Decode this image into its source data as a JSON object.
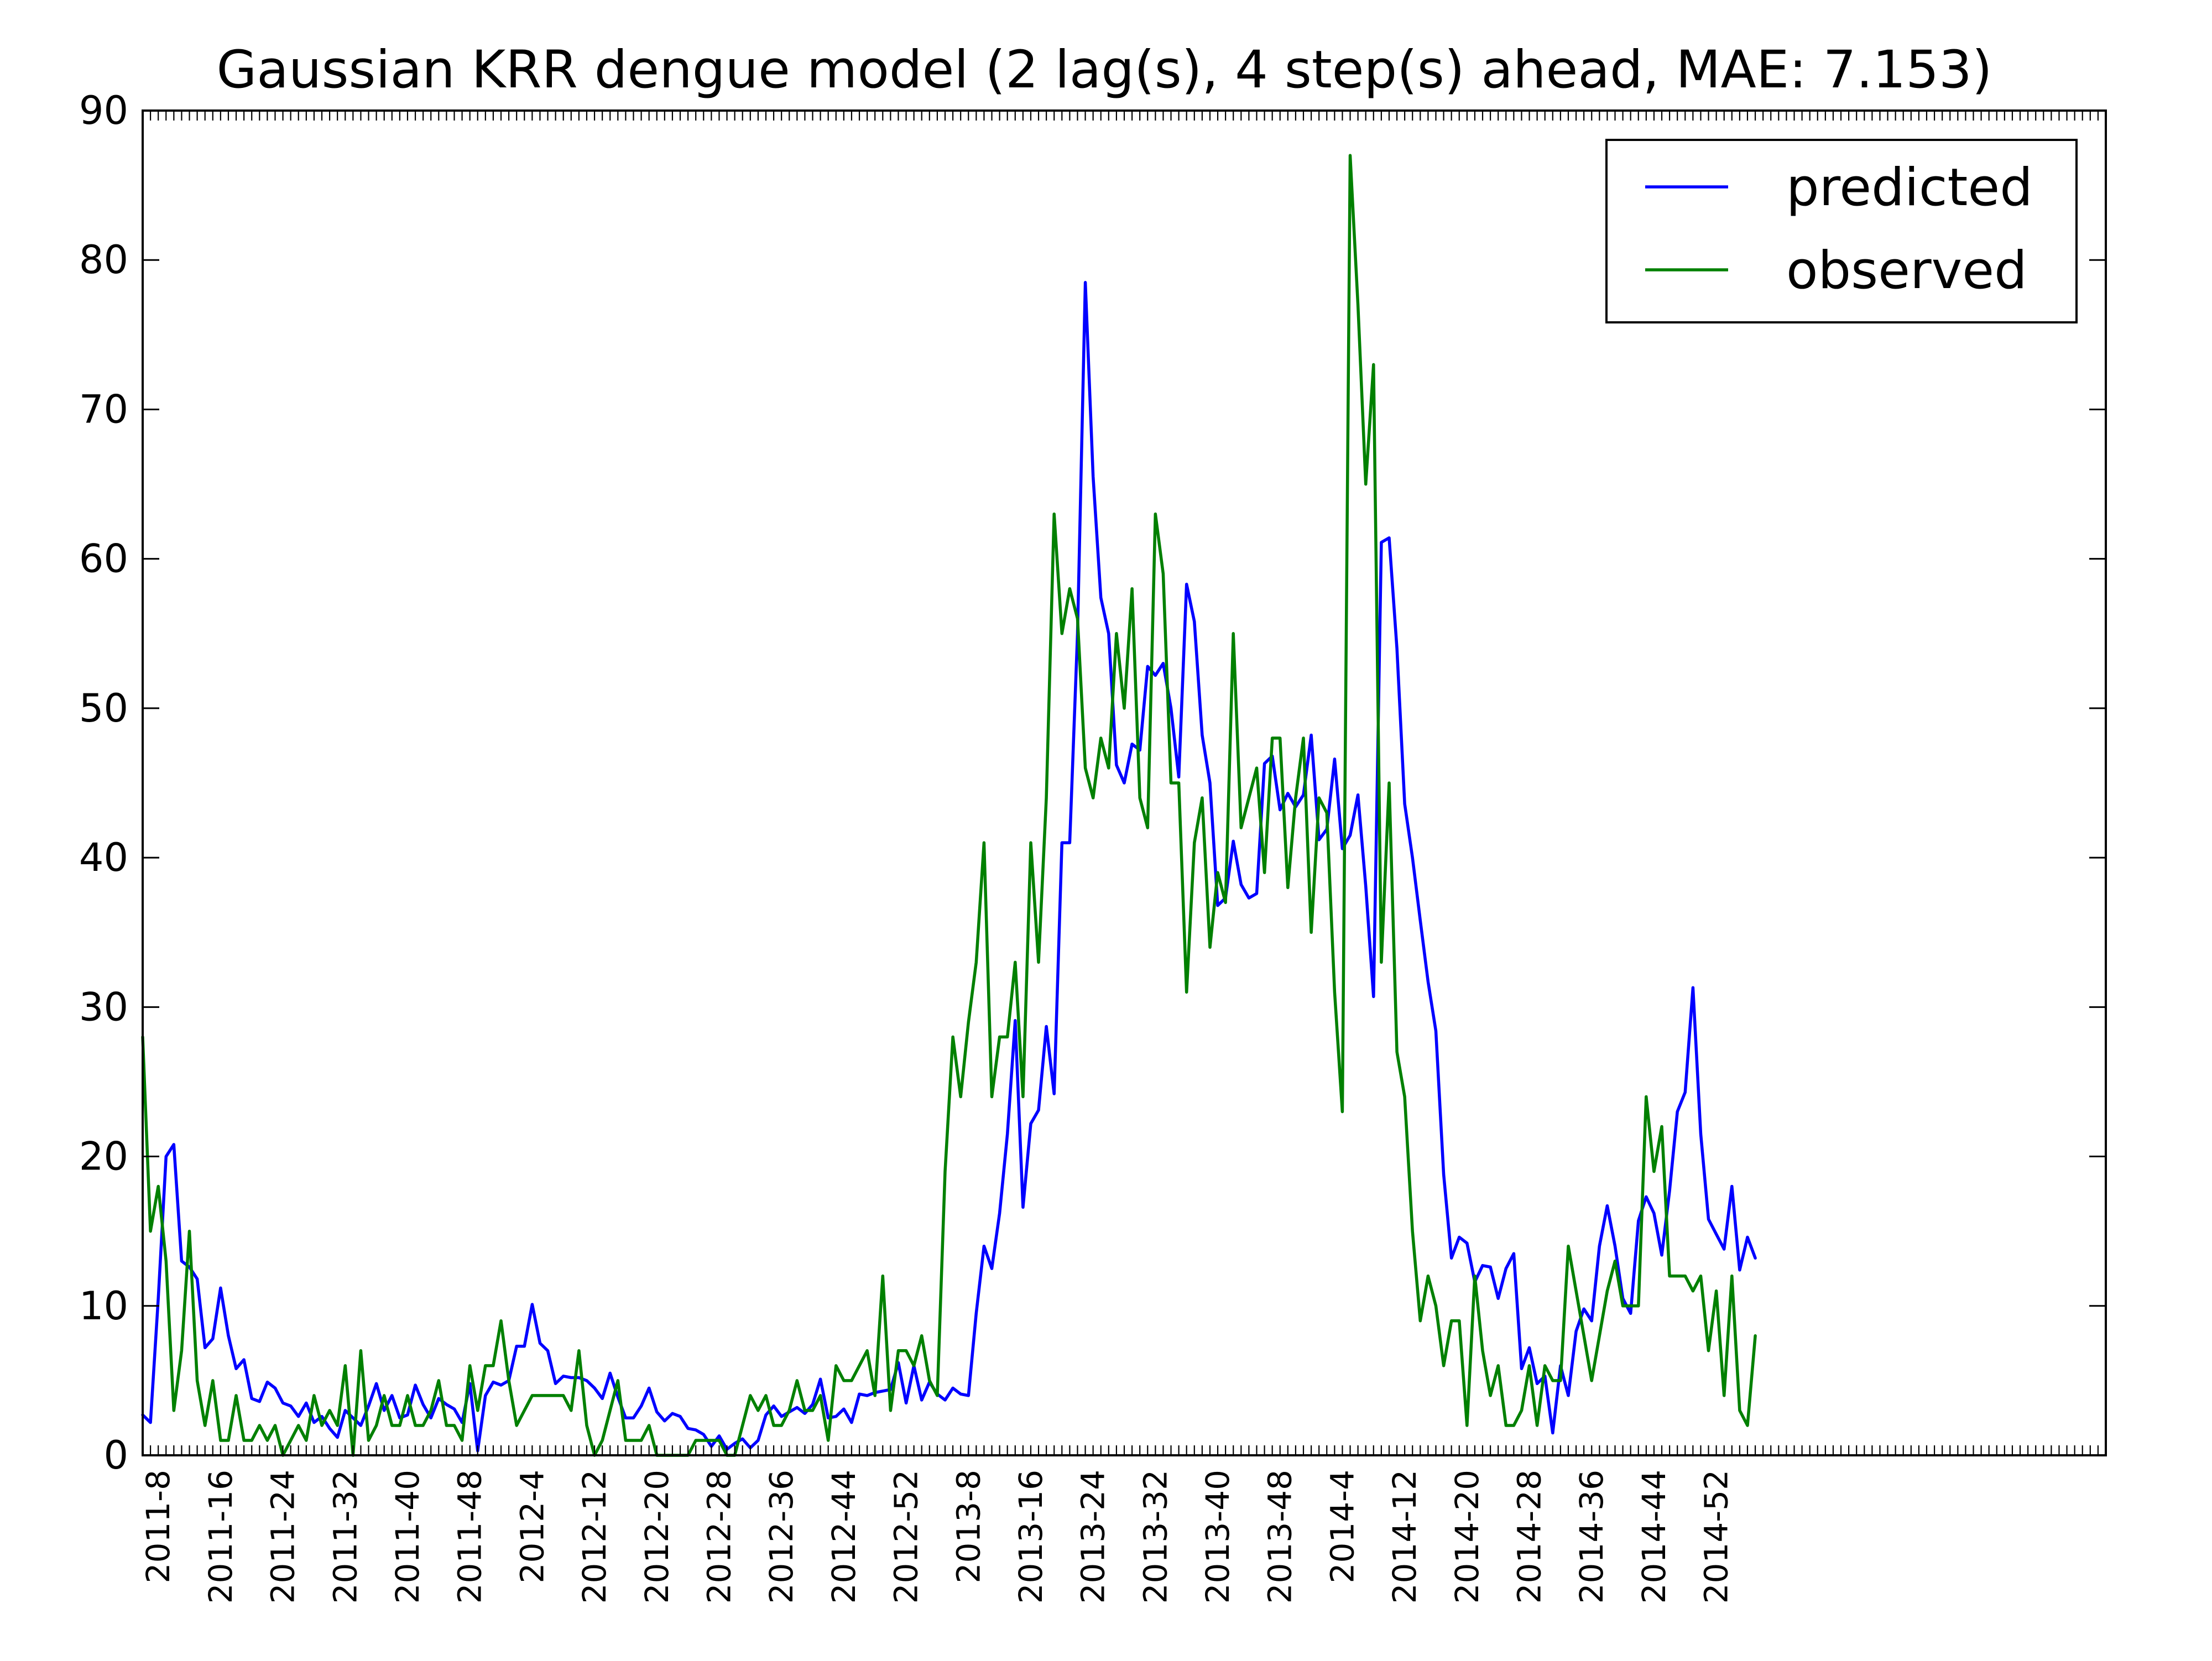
{
  "chart_data": {
    "type": "line",
    "title": "Gaussian KRR dengue model (2 lag(s), 4 step(s) ahead, MAE: 7.153)",
    "xlabel": "",
    "ylabel": "",
    "ylim": [
      0,
      90
    ],
    "yticks": [
      0,
      10,
      20,
      30,
      40,
      50,
      60,
      70,
      80,
      90
    ],
    "ytick_labels": [
      "0",
      "10",
      "20",
      "30",
      "40",
      "50",
      "60",
      "70",
      "80",
      "90"
    ],
    "x_week_range": [
      0,
      252
    ],
    "x_display_max": 252,
    "xtick_labels": [
      "2011-8",
      "2011-16",
      "2011-24",
      "2011-32",
      "2011-40",
      "2011-48",
      "2012-4",
      "2012-12",
      "2012-20",
      "2012-28",
      "2012-36",
      "2012-44",
      "2012-52",
      "2013-8",
      "2013-16",
      "2013-24",
      "2013-32",
      "2013-40",
      "2013-48",
      "2014-4",
      "2014-12",
      "2014-20",
      "2014-28",
      "2014-36",
      "2014-44",
      "2014-52"
    ],
    "xtick_positions": [
      2,
      10,
      18,
      26,
      34,
      42,
      50,
      58,
      66,
      74,
      82,
      90,
      98,
      106,
      114,
      122,
      130,
      138,
      146,
      154,
      162,
      170,
      178,
      186,
      194,
      202
    ],
    "grid": false,
    "legend_position": "top-right",
    "series": [
      {
        "name": "predicted",
        "color": "#0000ff",
        "values": [
          2.7,
          2.2,
          10.5,
          20,
          20.8,
          13,
          12.6,
          11.8,
          7.2,
          7.8,
          11.2,
          8,
          5.8,
          6.4,
          3.8,
          3.6,
          4.9,
          4.5,
          3.5,
          3.3,
          2.6,
          3.5,
          2.2,
          2.6,
          1.8,
          1.2,
          3,
          2.5,
          2,
          3.3,
          4.8,
          3,
          4,
          2.5,
          2.7,
          4.7,
          3.4,
          2.5,
          3.8,
          3.4,
          3.1,
          2.2,
          4.8,
          0.3,
          4,
          4.9,
          4.7,
          5,
          7.3,
          7.3,
          10.1,
          7.5,
          7,
          4.8,
          5.3,
          5.2,
          5.2,
          5,
          4.5,
          3.8,
          5.5,
          3.9,
          2.5,
          2.5,
          3.3,
          4.5,
          2.9,
          2.3,
          2.8,
          2.6,
          1.8,
          1.7,
          1.4,
          0.6,
          1.3,
          0.4,
          0.8,
          1.1,
          0.5,
          1,
          2.7,
          3.3,
          2.6,
          2.9,
          3.2,
          2.8,
          3.4,
          5.1,
          2.5,
          2.6,
          3.1,
          2.2,
          4.1,
          4,
          4.2,
          4.3,
          4.4,
          6.2,
          3.5,
          6,
          3.7,
          4.9,
          4.1,
          3.7,
          4.5,
          4.1,
          4,
          9.5,
          14,
          12.5,
          16.2,
          21.5,
          29.1,
          16.6,
          22.2,
          23.1,
          28.7,
          24.2,
          41,
          41,
          55,
          78.5,
          65.5,
          57.4,
          55,
          46.2,
          45,
          47.6,
          47.2,
          52.8,
          52.2,
          53,
          50,
          45.4,
          58.3,
          55.8,
          48.2,
          45,
          36.8,
          37.3,
          41.1,
          38.2,
          37.3,
          37.6,
          46.3,
          46.8,
          43.2,
          44.3,
          43.4,
          44.2,
          48.2,
          41.2,
          41.9,
          46.6,
          40.6,
          41.5,
          44.2,
          38.1,
          30.7,
          61.1,
          61.4,
          54,
          43.6,
          40,
          35.8,
          31.7,
          28.4,
          18.8,
          13.2,
          14.6,
          14.2,
          11.6,
          12.7,
          12.6,
          10.5,
          12.5,
          13.5,
          5.8,
          7.2,
          4.8,
          5.3,
          1.5,
          6,
          4,
          8.3,
          9.8,
          9,
          14,
          16.7,
          14,
          10.5,
          9.5,
          15.7,
          17.3,
          16.2,
          13.4,
          17.7,
          23,
          24.3,
          31.3,
          21.5,
          15.8,
          14.8,
          13.8,
          18,
          12.4,
          14.6,
          13.2
        ]
      },
      {
        "name": "observed",
        "color": "#008000",
        "values": [
          28,
          15,
          18,
          13,
          3,
          7,
          15,
          5,
          2,
          5,
          1,
          1,
          4,
          1,
          1,
          2,
          1,
          2,
          0,
          1,
          2,
          1,
          4,
          2,
          3,
          2,
          6,
          0,
          7,
          1,
          2,
          4,
          2,
          2,
          4,
          2,
          2,
          3,
          5,
          2,
          2,
          1,
          6,
          3,
          6,
          6,
          9,
          5,
          2,
          3,
          4,
          4,
          4,
          4,
          4,
          3,
          7,
          2,
          0,
          1,
          3,
          5,
          1,
          1,
          1,
          2,
          0,
          0,
          0,
          0,
          0,
          1,
          1,
          1,
          1,
          0,
          0,
          2,
          4,
          3,
          4,
          2,
          2,
          3,
          5,
          3,
          3,
          4,
          1,
          6,
          5,
          5,
          6,
          7,
          4,
          12,
          3,
          7,
          7,
          6,
          8,
          5,
          4,
          19,
          28,
          24,
          29,
          33,
          41,
          24,
          28,
          28,
          33,
          24,
          41,
          33,
          44,
          63,
          55,
          58,
          56,
          46,
          44,
          48,
          46,
          55,
          50,
          58,
          44,
          42,
          63,
          59,
          45,
          45,
          31,
          41,
          44,
          34,
          39,
          37,
          55,
          42,
          44,
          46,
          39,
          48,
          48,
          38,
          44,
          48,
          35,
          44,
          43,
          31,
          23,
          87,
          77,
          65,
          73,
          33,
          45,
          27,
          24,
          15,
          9,
          12,
          10,
          6,
          9,
          9,
          2,
          12,
          7,
          4,
          6,
          2,
          2,
          3,
          6,
          2,
          6,
          5,
          5,
          14,
          11,
          8,
          5,
          8,
          11,
          13,
          10,
          10,
          10,
          24,
          19,
          22,
          12,
          12,
          12,
          11,
          12,
          7,
          11,
          4,
          12,
          3,
          2,
          8
        ]
      }
    ]
  }
}
